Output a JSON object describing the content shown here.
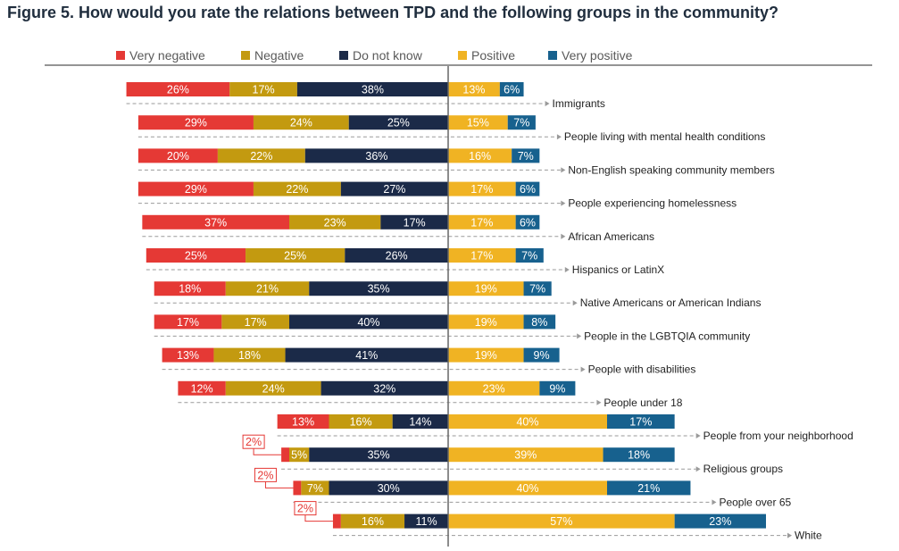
{
  "title": "Figure 5. How would you rate the relations between TPD and the following groups in the community?",
  "chart_data": {
    "type": "bar",
    "orientation": "horizontal",
    "stacking": "diverging",
    "legend_position": "top",
    "series": [
      {
        "name": "Very negative",
        "color": "#e53935",
        "side": "negative",
        "values": [
          26,
          29,
          20,
          29,
          37,
          25,
          18,
          17,
          13,
          12,
          13,
          2,
          2,
          2
        ]
      },
      {
        "name": "Negative",
        "color": "#c39a10",
        "side": "negative",
        "values": [
          17,
          24,
          22,
          22,
          23,
          25,
          21,
          17,
          18,
          24,
          16,
          5,
          7,
          16
        ]
      },
      {
        "name": "Do not know",
        "color": "#1b2a48",
        "side": "negative",
        "values": [
          38,
          25,
          36,
          27,
          17,
          26,
          35,
          40,
          41,
          32,
          14,
          35,
          30,
          11
        ]
      },
      {
        "name": "Positive",
        "color": "#f0b323",
        "side": "positive",
        "values": [
          13,
          15,
          16,
          17,
          17,
          17,
          19,
          19,
          19,
          23,
          40,
          39,
          40,
          57
        ]
      },
      {
        "name": "Very positive",
        "color": "#17618e",
        "side": "positive",
        "values": [
          6,
          7,
          7,
          6,
          6,
          7,
          7,
          8,
          9,
          9,
          17,
          18,
          21,
          23
        ]
      }
    ],
    "categories": [
      "Immigrants",
      "People living with mental health conditions",
      "Non-English speaking community members",
      "People experiencing homelessness",
      "African Americans",
      "Hispanics or LatinX",
      "Native Americans or American Indians",
      "People in the LGBTQIA community",
      "People with disabilities",
      "People under 18",
      "People from your neighborhood",
      "Religious groups",
      "People over 65",
      "White"
    ],
    "labels": [
      [
        "26%",
        "17%",
        "38%",
        "13%",
        "6%"
      ],
      [
        "29%",
        "24%",
        "25%",
        "15%",
        "7%"
      ],
      [
        "20%",
        "22%",
        "36%",
        "16%",
        "7%"
      ],
      [
        "29%",
        "22%",
        "27%",
        "17%",
        "6%"
      ],
      [
        "37%",
        "23%",
        "17%",
        "17%",
        "6%"
      ],
      [
        "25%",
        "25%",
        "26%",
        "17%",
        "7%"
      ],
      [
        "18%",
        "21%",
        "35%",
        "19%",
        "7%"
      ],
      [
        "17%",
        "17%",
        "40%",
        "19%",
        "8%"
      ],
      [
        "13%",
        "18%",
        "41%",
        "19%",
        "9%"
      ],
      [
        "12%",
        "24%",
        "32%",
        "23%",
        "9%"
      ],
      [
        "13%",
        "16%",
        "14%",
        "40%",
        "17%"
      ],
      [
        "2%",
        "5%",
        "35%",
        "39%",
        "18%"
      ],
      [
        "2%",
        "7%",
        "30%",
        "40%",
        "21%"
      ],
      [
        "2%",
        "16%",
        "11%",
        "57%",
        "23%"
      ]
    ],
    "callout_rows": [
      11,
      12,
      13
    ],
    "xlim": [
      -100,
      100
    ],
    "grid": false
  }
}
